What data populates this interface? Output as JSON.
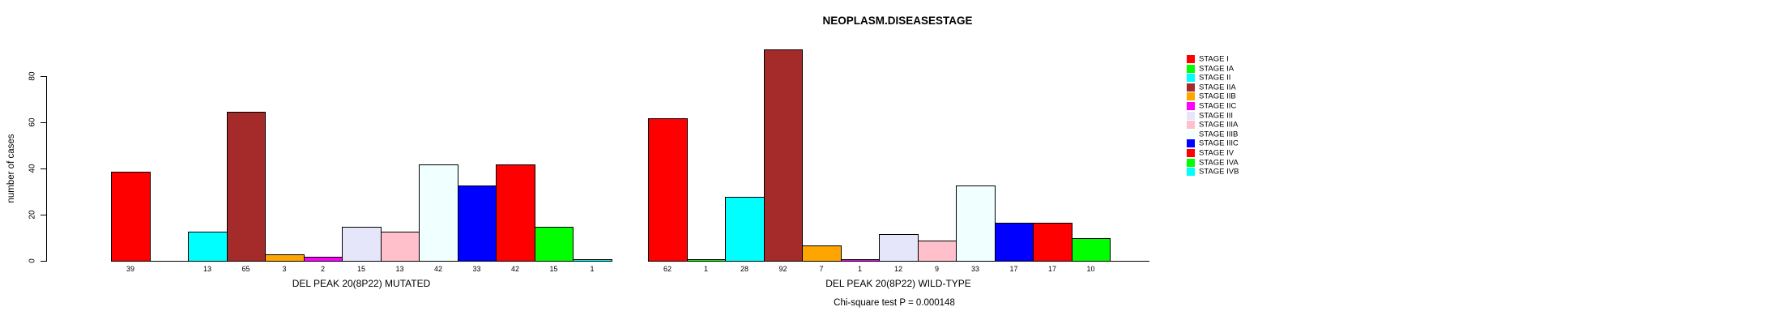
{
  "title": "NEOPLASM.DISEASESTAGE",
  "footer": {
    "text": "Chi-square test P = 0.000148"
  },
  "y_axis": {
    "label": "number of cases",
    "ticks": [
      0,
      20,
      40,
      60,
      80
    ],
    "ylim": [
      0,
      80
    ]
  },
  "legend": {
    "position": "right",
    "items": [
      {
        "label": "STAGE I",
        "color": "#FF0000"
      },
      {
        "label": "STAGE IA",
        "color": "#00FF00"
      },
      {
        "label": "STAGE II",
        "color": "#00FFFF"
      },
      {
        "label": "STAGE IIA",
        "color": "#A52A2A"
      },
      {
        "label": "STAGE IIB",
        "color": "#FFA500"
      },
      {
        "label": "STAGE IIC",
        "color": "#FF00FF"
      },
      {
        "label": "STAGE III",
        "color": "#E6E6FA"
      },
      {
        "label": "STAGE IIIA",
        "color": "#FFC0CB"
      },
      {
        "label": "STAGE IIIB",
        "color": "#F0FFFF"
      },
      {
        "label": "STAGE IIIC",
        "color": "#0000FF"
      },
      {
        "label": "STAGE IV",
        "color": "#FF0000"
      },
      {
        "label": "STAGE IVA",
        "color": "#00FF00"
      },
      {
        "label": "STAGE IVB",
        "color": "#00FFFF"
      }
    ]
  },
  "chart_data": [
    {
      "type": "bar",
      "title": "",
      "xlabel": "DEL PEAK 20(8P22) MUTATED",
      "ylabel": "number of cases",
      "ylim": [
        0,
        80
      ],
      "grid": false,
      "categories": [
        "STAGE I",
        "STAGE IA",
        "STAGE II",
        "STAGE IIA",
        "STAGE IIB",
        "STAGE IIC",
        "STAGE III",
        "STAGE IIIA",
        "STAGE IIIB",
        "STAGE IIIC",
        "STAGE IV",
        "STAGE IVA",
        "STAGE IVB"
      ],
      "values": [
        39,
        0,
        13,
        65,
        3,
        2,
        15,
        13,
        42,
        33,
        42,
        15,
        1
      ],
      "colors": [
        "#FF0000",
        "#00FF00",
        "#00FFFF",
        "#A52A2A",
        "#FFA500",
        "#FF00FF",
        "#E6E6FA",
        "#FFC0CB",
        "#F0FFFF",
        "#0000FF",
        "#FF0000",
        "#00FF00",
        "#00FFFF"
      ]
    },
    {
      "type": "bar",
      "title": "",
      "xlabel": "DEL PEAK 20(8P22) WILD-TYPE",
      "ylabel": "number of cases",
      "ylim": [
        0,
        80
      ],
      "grid": false,
      "categories": [
        "STAGE I",
        "STAGE IA",
        "STAGE II",
        "STAGE IIA",
        "STAGE IIB",
        "STAGE IIC",
        "STAGE III",
        "STAGE IIIA",
        "STAGE IIIB",
        "STAGE IIIC",
        "STAGE IV",
        "STAGE IVA",
        "STAGE IVB"
      ],
      "values": [
        62,
        1,
        28,
        92,
        7,
        1,
        12,
        9,
        33,
        17,
        17,
        10,
        0
      ],
      "colors": [
        "#FF0000",
        "#00FF00",
        "#00FFFF",
        "#A52A2A",
        "#FFA500",
        "#FF00FF",
        "#E6E6FA",
        "#FFC0CB",
        "#F0FFFF",
        "#0000FF",
        "#FF0000",
        "#00FF00",
        "#00FFFF"
      ]
    }
  ]
}
